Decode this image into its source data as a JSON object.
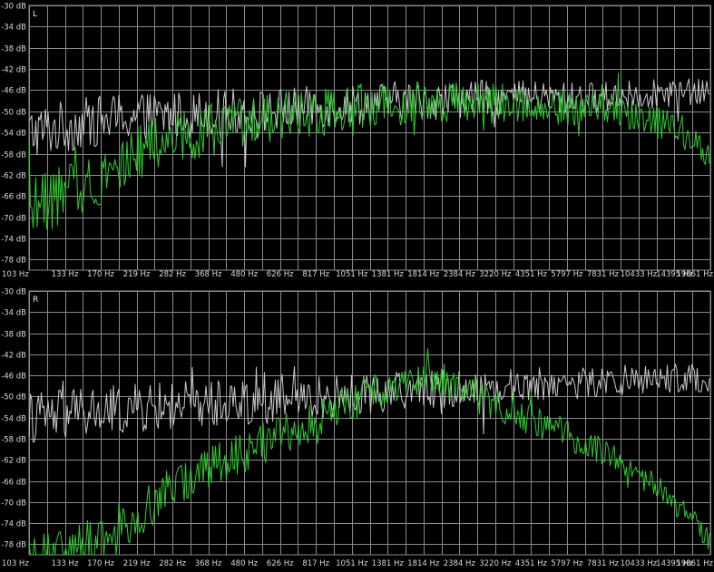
{
  "colors": {
    "background": "#000000",
    "grid": "#8a8a8a",
    "text": "#d8d8d8",
    "reference": "#c8c8c8",
    "signal": "#2ecc2e"
  },
  "chart_data": [
    {
      "type": "line",
      "channel": "L",
      "x_ticks": [
        "103 Hz",
        "133 Hz",
        "170 Hz",
        "219 Hz",
        "282 Hz",
        "368 Hz",
        "480 Hz",
        "626 Hz",
        "817 Hz",
        "1051 Hz",
        "1381 Hz",
        "1814 Hz",
        "2384 Hz",
        "3220 Hz",
        "4351 Hz",
        "5797 Hz",
        "7831 Hz",
        "10433 Hz",
        "14395 Hz",
        "19861 Hz"
      ],
      "y_ticks": [
        "-30 dB",
        "-34 dB",
        "-38 dB",
        "-42 dB",
        "-46 dB",
        "-50 dB",
        "-54 dB",
        "-58 dB",
        "-62 dB",
        "-66 dB",
        "-70 dB",
        "-74 dB",
        "-78 dB"
      ],
      "ylim": [
        -80,
        -30
      ],
      "xlim": [
        103,
        19861
      ],
      "x_scale": "log",
      "grid": true,
      "series": [
        {
          "color": "#c8c8c8",
          "noise": 3.2,
          "x": [
            103,
            133,
            170,
            219,
            282,
            368,
            480,
            626,
            817,
            1051,
            1381,
            1814,
            2384,
            3220,
            4351,
            5797,
            7831,
            10433,
            14395,
            19861
          ],
          "values": [
            -54,
            -53,
            -52,
            -51,
            -51,
            -50.5,
            -50,
            -50,
            -49.5,
            -49,
            -48.5,
            -48,
            -48,
            -47.5,
            -47.5,
            -47.5,
            -47.5,
            -47,
            -46.5,
            -46.5
          ]
        },
        {
          "color": "#2ecc2e",
          "noise": 3.6,
          "x": [
            103,
            133,
            170,
            219,
            282,
            368,
            480,
            626,
            817,
            1051,
            1381,
            1814,
            2384,
            3220,
            4351,
            5797,
            7831,
            10433,
            14395,
            19861
          ],
          "values": [
            -68,
            -66,
            -63,
            -59,
            -56,
            -54,
            -53,
            -51.5,
            -50.5,
            -50,
            -49,
            -48.5,
            -48,
            -48.5,
            -48.5,
            -49,
            -49.5,
            -50,
            -53,
            -58
          ]
        }
      ]
    },
    {
      "type": "line",
      "channel": "R",
      "x_ticks": [
        "103 Hz",
        "133 Hz",
        "170 Hz",
        "219 Hz",
        "282 Hz",
        "368 Hz",
        "480 Hz",
        "626 Hz",
        "817 Hz",
        "1051 Hz",
        "1381 Hz",
        "1814 Hz",
        "2384 Hz",
        "3220 Hz",
        "4351 Hz",
        "5797 Hz",
        "7831 Hz",
        "10433 Hz",
        "14395 Hz",
        "19861 Hz"
      ],
      "y_ticks": [
        "-30 dB",
        "-34 dB",
        "-38 dB",
        "-42 dB",
        "-46 dB",
        "-50 dB",
        "-54 dB",
        "-58 dB",
        "-62 dB",
        "-66 dB",
        "-70 dB",
        "-74 dB",
        "-78 dB"
      ],
      "ylim": [
        -80,
        -30
      ],
      "xlim": [
        103,
        19861
      ],
      "x_scale": "log",
      "grid": true,
      "series": [
        {
          "color": "#c8c8c8",
          "noise": 3.2,
          "x": [
            103,
            133,
            170,
            219,
            282,
            368,
            480,
            626,
            817,
            1051,
            1381,
            1814,
            2384,
            3220,
            4351,
            5797,
            7831,
            10433,
            14395,
            19861
          ],
          "values": [
            -54,
            -53.5,
            -53,
            -52.5,
            -52,
            -51.5,
            -51,
            -51,
            -50.5,
            -50,
            -49.5,
            -49,
            -48.5,
            -48.5,
            -48,
            -47.5,
            -47.5,
            -47,
            -46.5,
            -46.5
          ]
        },
        {
          "color": "#2ecc2e",
          "noise": 3.0,
          "x": [
            103,
            133,
            170,
            219,
            282,
            368,
            480,
            626,
            817,
            1051,
            1381,
            1814,
            2384,
            3220,
            4351,
            5797,
            7831,
            10433,
            14395,
            19861
          ],
          "values": [
            -80,
            -80,
            -77,
            -74,
            -69,
            -65,
            -62,
            -59,
            -56,
            -53,
            -50,
            -47,
            -46,
            -50,
            -53,
            -56,
            -59,
            -63,
            -69,
            -77
          ]
        }
      ]
    }
  ]
}
